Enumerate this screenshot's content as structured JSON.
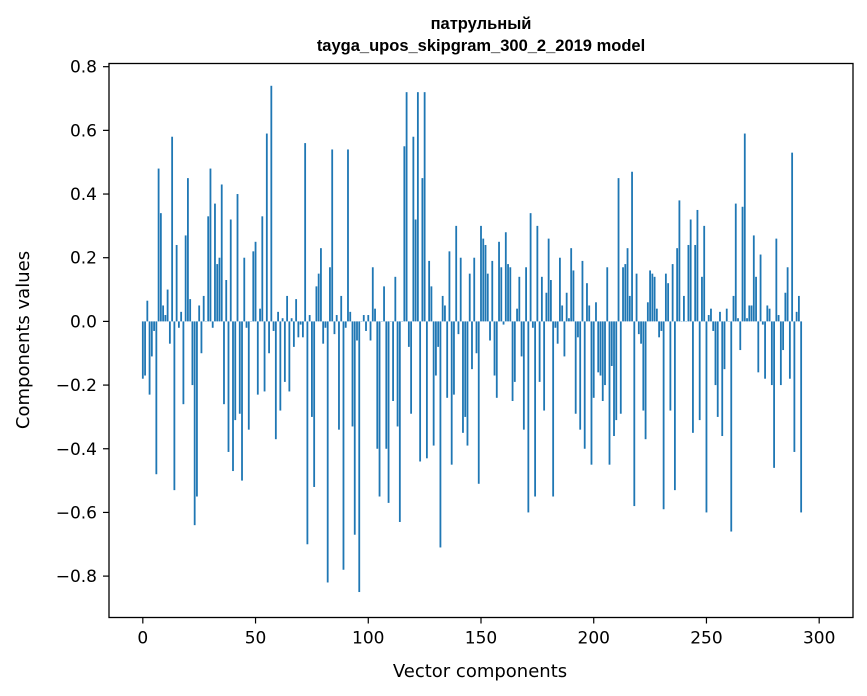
{
  "chart_data": {
    "type": "bar",
    "title_line1": "патрульный",
    "title_line2": "tayga_upos_skipgram_300_2_2019 model",
    "xlabel": "Vector components",
    "ylabel": "Components values",
    "xlim": [
      -15,
      315
    ],
    "ylim": [
      -0.93,
      0.81
    ],
    "xticks": [
      0,
      50,
      100,
      150,
      200,
      250,
      300
    ],
    "xtick_labels": [
      "0",
      "50",
      "100",
      "150",
      "200",
      "250",
      "300"
    ],
    "yticks": [
      -0.8,
      -0.6,
      -0.4,
      -0.2,
      0.0,
      0.2,
      0.4,
      0.6,
      0.8
    ],
    "ytick_labels": [
      "−0.8",
      "−0.6",
      "−0.4",
      "−0.2",
      "0.0",
      "0.2",
      "0.4",
      "0.6",
      "0.8"
    ],
    "bar_color": "#1f77b4",
    "grid": false,
    "values": [
      -0.18,
      -0.17,
      0.065,
      -0.23,
      -0.11,
      -0.03,
      -0.48,
      0.48,
      0.34,
      0.05,
      0.02,
      0.1,
      -0.07,
      0.58,
      -0.53,
      0.24,
      -0.02,
      0.03,
      -0.26,
      0.27,
      0.45,
      0.07,
      -0.2,
      -0.64,
      -0.55,
      0.05,
      -0.1,
      0.08,
      0.0,
      0.33,
      0.48,
      -0.02,
      0.37,
      0.18,
      0.2,
      0.43,
      -0.26,
      0.13,
      -0.41,
      0.32,
      -0.47,
      -0.31,
      0.4,
      -0.29,
      -0.5,
      0.2,
      -0.02,
      -0.34,
      0.0,
      0.22,
      0.25,
      -0.23,
      0.04,
      0.33,
      -0.22,
      0.59,
      -0.1,
      0.74,
      -0.03,
      -0.37,
      0.03,
      -0.28,
      0.01,
      -0.19,
      0.08,
      -0.22,
      0.01,
      -0.08,
      0.07,
      -0.05,
      -0.01,
      -0.05,
      0.56,
      -0.7,
      0.02,
      -0.3,
      -0.52,
      0.11,
      0.15,
      0.23,
      -0.07,
      -0.02,
      -0.82,
      0.17,
      0.54,
      -0.04,
      0.02,
      -0.34,
      0.08,
      -0.78,
      -0.02,
      0.54,
      0.03,
      -0.33,
      -0.67,
      -0.06,
      -0.85,
      0.0,
      0.02,
      -0.03,
      0.02,
      -0.06,
      0.17,
      0.04,
      -0.4,
      -0.55,
      0.0,
      0.11,
      -0.4,
      -0.57,
      0.0,
      -0.25,
      0.14,
      -0.33,
      -0.63,
      0.0,
      0.55,
      0.72,
      -0.08,
      -0.29,
      0.58,
      0.32,
      0.72,
      -0.44,
      0.45,
      0.72,
      -0.43,
      0.19,
      0.11,
      -0.39,
      -0.17,
      -0.08,
      -0.71,
      0.08,
      0.05,
      -0.24,
      0.22,
      -0.45,
      -0.23,
      0.3,
      -0.04,
      0.2,
      -0.35,
      -0.3,
      -0.39,
      0.15,
      -0.15,
      0.2,
      -0.1,
      -0.51,
      0.3,
      0.26,
      0.24,
      0.15,
      -0.06,
      0.19,
      -0.17,
      -0.24,
      0.25,
      0.17,
      -0.01,
      0.28,
      0.18,
      0.17,
      -0.25,
      -0.19,
      0.04,
      0.14,
      -0.11,
      -0.34,
      0.17,
      -0.6,
      0.34,
      -0.02,
      -0.55,
      0.3,
      -0.19,
      0.14,
      -0.28,
      0.09,
      0.26,
      0.13,
      -0.55,
      -0.02,
      -0.07,
      0.2,
      0.05,
      -0.11,
      0.09,
      0.01,
      0.23,
      0.16,
      -0.29,
      -0.05,
      -0.34,
      0.19,
      -0.4,
      0.12,
      0.05,
      -0.45,
      -0.24,
      0.06,
      -0.16,
      -0.17,
      -0.25,
      -0.2,
      0.17,
      -0.45,
      -0.14,
      -0.36,
      -0.31,
      0.45,
      -0.29,
      0.17,
      0.18,
      0.23,
      0.08,
      0.47,
      -0.58,
      0.15,
      -0.04,
      -0.07,
      -0.28,
      -0.37,
      0.06,
      0.16,
      0.15,
      0.14,
      0.04,
      -0.05,
      -0.03,
      -0.59,
      0.15,
      0.12,
      -0.28,
      0.18,
      -0.53,
      0.23,
      0.38,
      0.0,
      0.08,
      0.0,
      0.24,
      0.32,
      -0.35,
      0.24,
      0.35,
      -0.31,
      0.14,
      0.3,
      -0.6,
      0.02,
      0.04,
      -0.03,
      -0.2,
      -0.3,
      0.03,
      -0.36,
      -0.15,
      0.04,
      0.0,
      -0.66,
      0.08,
      0.37,
      0.01,
      -0.09,
      0.36,
      0.59,
      0.01,
      0.05,
      0.05,
      0.27,
      0.14,
      -0.16,
      0.21,
      -0.01,
      -0.18,
      0.05,
      0.04,
      -0.2,
      -0.46,
      0.26,
      0.02,
      -0.2,
      -0.09,
      0.09,
      0.17,
      -0.18,
      0.53,
      -0.41,
      0.03,
      0.08,
      -0.6
    ]
  }
}
